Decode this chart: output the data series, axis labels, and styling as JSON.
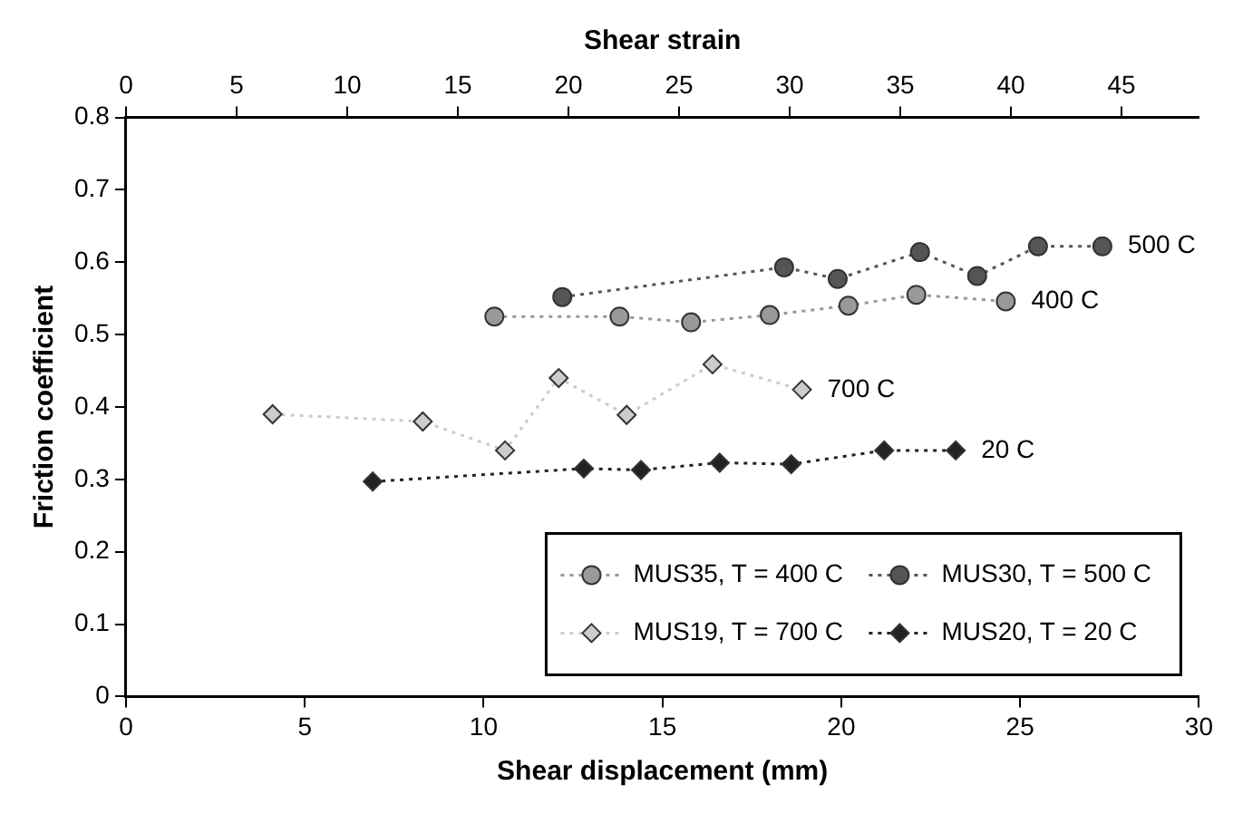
{
  "chart_data": {
    "type": "line",
    "xlabel": "Shear displacement (mm)",
    "ylabel": "Friction coefficient",
    "x2label": "Shear strain",
    "xlim": [
      0,
      30
    ],
    "xticks": [
      0,
      5,
      10,
      15,
      20,
      25,
      30
    ],
    "x2lim": [
      0,
      48.5
    ],
    "x2ticks": [
      0,
      5,
      10,
      15,
      20,
      25,
      30,
      35,
      40,
      45
    ],
    "ylim": [
      0,
      0.8
    ],
    "yticks": [
      0,
      0.1,
      0.2,
      0.3,
      0.4,
      0.5,
      0.6,
      0.7,
      0.8
    ],
    "grid": false,
    "legend": "bottom right",
    "line_style": "dotted",
    "series": [
      {
        "name": "MUS35, T = 400 C",
        "color": "#999999",
        "marker": "circle",
        "x": [
          10.3,
          13.8,
          15.8,
          18.0,
          20.2,
          22.1,
          24.6
        ],
        "values": [
          0.525,
          0.525,
          0.517,
          0.527,
          0.54,
          0.555,
          0.546
        ]
      },
      {
        "name": "MUS30, T = 500 C",
        "color": "#555555",
        "marker": "circle",
        "x": [
          12.2,
          18.4,
          19.9,
          22.2,
          23.8,
          25.5,
          27.3
        ],
        "values": [
          0.552,
          0.593,
          0.577,
          0.614,
          0.581,
          0.622,
          0.622
        ]
      },
      {
        "name": "MUS19, T = 700 C",
        "color": "#cccccc",
        "marker": "diamond",
        "x": [
          4.1,
          8.3,
          10.6,
          12.1,
          14.0,
          16.4,
          18.9
        ],
        "values": [
          0.39,
          0.38,
          0.34,
          0.44,
          0.389,
          0.459,
          0.424
        ]
      },
      {
        "name": "MUS20, T = 20 C",
        "color": "#222222",
        "marker": "diamond",
        "x": [
          6.9,
          12.8,
          14.4,
          16.6,
          18.6,
          21.2,
          23.2
        ],
        "values": [
          0.297,
          0.315,
          0.313,
          0.323,
          0.321,
          0.34,
          0.34
        ]
      }
    ],
    "annotations": [
      {
        "text": "500 C",
        "x": 27.3,
        "y": 0.622
      },
      {
        "text": "400 C",
        "x": 24.6,
        "y": 0.546
      },
      {
        "text": "700 C",
        "x": 18.9,
        "y": 0.424
      },
      {
        "text": "20 C",
        "x": 23.2,
        "y": 0.34
      }
    ]
  }
}
